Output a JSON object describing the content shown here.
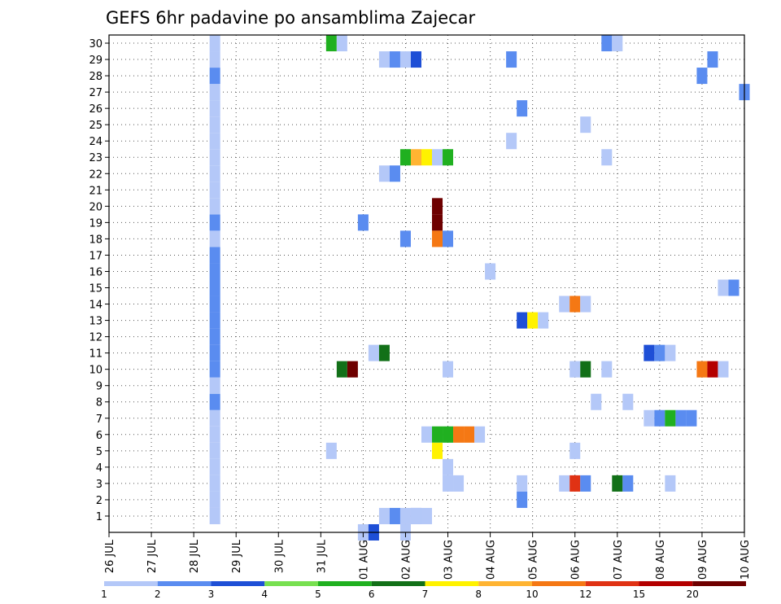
{
  "chart_data": {
    "type": "heatmap",
    "title": "GEFS 6hr padavine po ansamblima Zajecar",
    "xlabel": "",
    "ylabel": "",
    "x_ticks": [
      "26 JUL",
      "27 JUL",
      "28 JUL",
      "29 JUL",
      "30 JUL",
      "31 JUL",
      "01 AUG",
      "02 AUG",
      "03 AUG",
      "04 AUG",
      "05 AUG",
      "06 AUG",
      "07 AUG",
      "08 AUG",
      "09 AUG",
      "10 AUG"
    ],
    "y_ticks": [
      1,
      2,
      3,
      4,
      5,
      6,
      7,
      8,
      9,
      10,
      11,
      12,
      13,
      14,
      15,
      16,
      17,
      18,
      19,
      20,
      21,
      22,
      23,
      24,
      25,
      26,
      27,
      28,
      29,
      30
    ],
    "x_unit": "6-hour step index from 26 JUL 00Z (4 steps per day)",
    "grid": true,
    "colorbar": {
      "labels": [
        "1",
        "2",
        "3",
        "4",
        "5",
        "6",
        "7",
        "8",
        "10",
        "12",
        "15",
        "20"
      ],
      "colors": [
        "#b4c8f8",
        "#5a8cf0",
        "#1e4fd6",
        "#78e050",
        "#20b020",
        "#127018",
        "#fff200",
        "#ffb432",
        "#f57814",
        "#e03214",
        "#b40000",
        "#6e0000"
      ]
    },
    "cells": [
      [
        10,
        1,
        0
      ],
      [
        10,
        2,
        0
      ],
      [
        10,
        3,
        0
      ],
      [
        10,
        4,
        0
      ],
      [
        10,
        5,
        0
      ],
      [
        10,
        6,
        0
      ],
      [
        10,
        7,
        0
      ],
      [
        10,
        8,
        1
      ],
      [
        10,
        9,
        0
      ],
      [
        10,
        10,
        1
      ],
      [
        10,
        11,
        1
      ],
      [
        10,
        12,
        1
      ],
      [
        10,
        13,
        1
      ],
      [
        10,
        14,
        1
      ],
      [
        10,
        15,
        1
      ],
      [
        10,
        16,
        1
      ],
      [
        10,
        17,
        1
      ],
      [
        10,
        18,
        0
      ],
      [
        10,
        19,
        1
      ],
      [
        10,
        20,
        0
      ],
      [
        10,
        21,
        0
      ],
      [
        10,
        22,
        0
      ],
      [
        10,
        23,
        0
      ],
      [
        10,
        24,
        0
      ],
      [
        10,
        25,
        0
      ],
      [
        10,
        26,
        0
      ],
      [
        10,
        27,
        0
      ],
      [
        10,
        28,
        1
      ],
      [
        10,
        29,
        0
      ],
      [
        10,
        30,
        0
      ],
      [
        21,
        5,
        0
      ],
      [
        21,
        30,
        4
      ],
      [
        22,
        30,
        0
      ],
      [
        22,
        10,
        5
      ],
      [
        23,
        10,
        11
      ],
      [
        24,
        19,
        1
      ],
      [
        24,
        0,
        0
      ],
      [
        25,
        0,
        2
      ],
      [
        25,
        11,
        0
      ],
      [
        26,
        11,
        5
      ],
      [
        26,
        1,
        0
      ],
      [
        26,
        22,
        0
      ],
      [
        26,
        29,
        0
      ],
      [
        27,
        1,
        1
      ],
      [
        27,
        22,
        1
      ],
      [
        27,
        29,
        1
      ],
      [
        28,
        29,
        0
      ],
      [
        29,
        1,
        2
      ],
      [
        29,
        29,
        2
      ],
      [
        30,
        1,
        0
      ],
      [
        28,
        0,
        0
      ],
      [
        28,
        1,
        0
      ],
      [
        29,
        1,
        0
      ],
      [
        28,
        18,
        1
      ],
      [
        28,
        23,
        4
      ],
      [
        29,
        23,
        7
      ],
      [
        30,
        23,
        6
      ],
      [
        31,
        23,
        0
      ],
      [
        32,
        23,
        4
      ],
      [
        31,
        20,
        11
      ],
      [
        31,
        19,
        11
      ],
      [
        31,
        18,
        8
      ],
      [
        32,
        18,
        1
      ],
      [
        30,
        6,
        0
      ],
      [
        31,
        6,
        4
      ],
      [
        32,
        6,
        4
      ],
      [
        33,
        6,
        8
      ],
      [
        34,
        6,
        8
      ],
      [
        35,
        6,
        0
      ],
      [
        31,
        5,
        6
      ],
      [
        32,
        3,
        0
      ],
      [
        32,
        4,
        0
      ],
      [
        33,
        3,
        0
      ],
      [
        32,
        10,
        0
      ],
      [
        36,
        16,
        0
      ],
      [
        38,
        24,
        0
      ],
      [
        38,
        29,
        1
      ],
      [
        39,
        26,
        1
      ],
      [
        39,
        13,
        2
      ],
      [
        40,
        13,
        6
      ],
      [
        41,
        13,
        0
      ],
      [
        39,
        3,
        0
      ],
      [
        39,
        2,
        1
      ],
      [
        43,
        3,
        0
      ],
      [
        44,
        3,
        9
      ],
      [
        45,
        3,
        1
      ],
      [
        44,
        5,
        0
      ],
      [
        44,
        10,
        0
      ],
      [
        45,
        10,
        5
      ],
      [
        43,
        14,
        0
      ],
      [
        44,
        14,
        8
      ],
      [
        45,
        14,
        0
      ],
      [
        45,
        25,
        0
      ],
      [
        46,
        8,
        0
      ],
      [
        47,
        10,
        0
      ],
      [
        47,
        23,
        0
      ],
      [
        47,
        30,
        1
      ],
      [
        48,
        30,
        0
      ],
      [
        48,
        3,
        5
      ],
      [
        49,
        3,
        1
      ],
      [
        49,
        8,
        0
      ],
      [
        51,
        7,
        0
      ],
      [
        52,
        7,
        1
      ],
      [
        53,
        7,
        4
      ],
      [
        54,
        7,
        1
      ],
      [
        55,
        7,
        1
      ],
      [
        51,
        11,
        2
      ],
      [
        52,
        11,
        1
      ],
      [
        53,
        11,
        0
      ],
      [
        53,
        3,
        0
      ],
      [
        56,
        28,
        1
      ],
      [
        57,
        29,
        1
      ],
      [
        56,
        10,
        8
      ],
      [
        57,
        10,
        10
      ],
      [
        58,
        10,
        0
      ],
      [
        58,
        15,
        0
      ],
      [
        59,
        15,
        1
      ],
      [
        60,
        27,
        1
      ]
    ]
  }
}
